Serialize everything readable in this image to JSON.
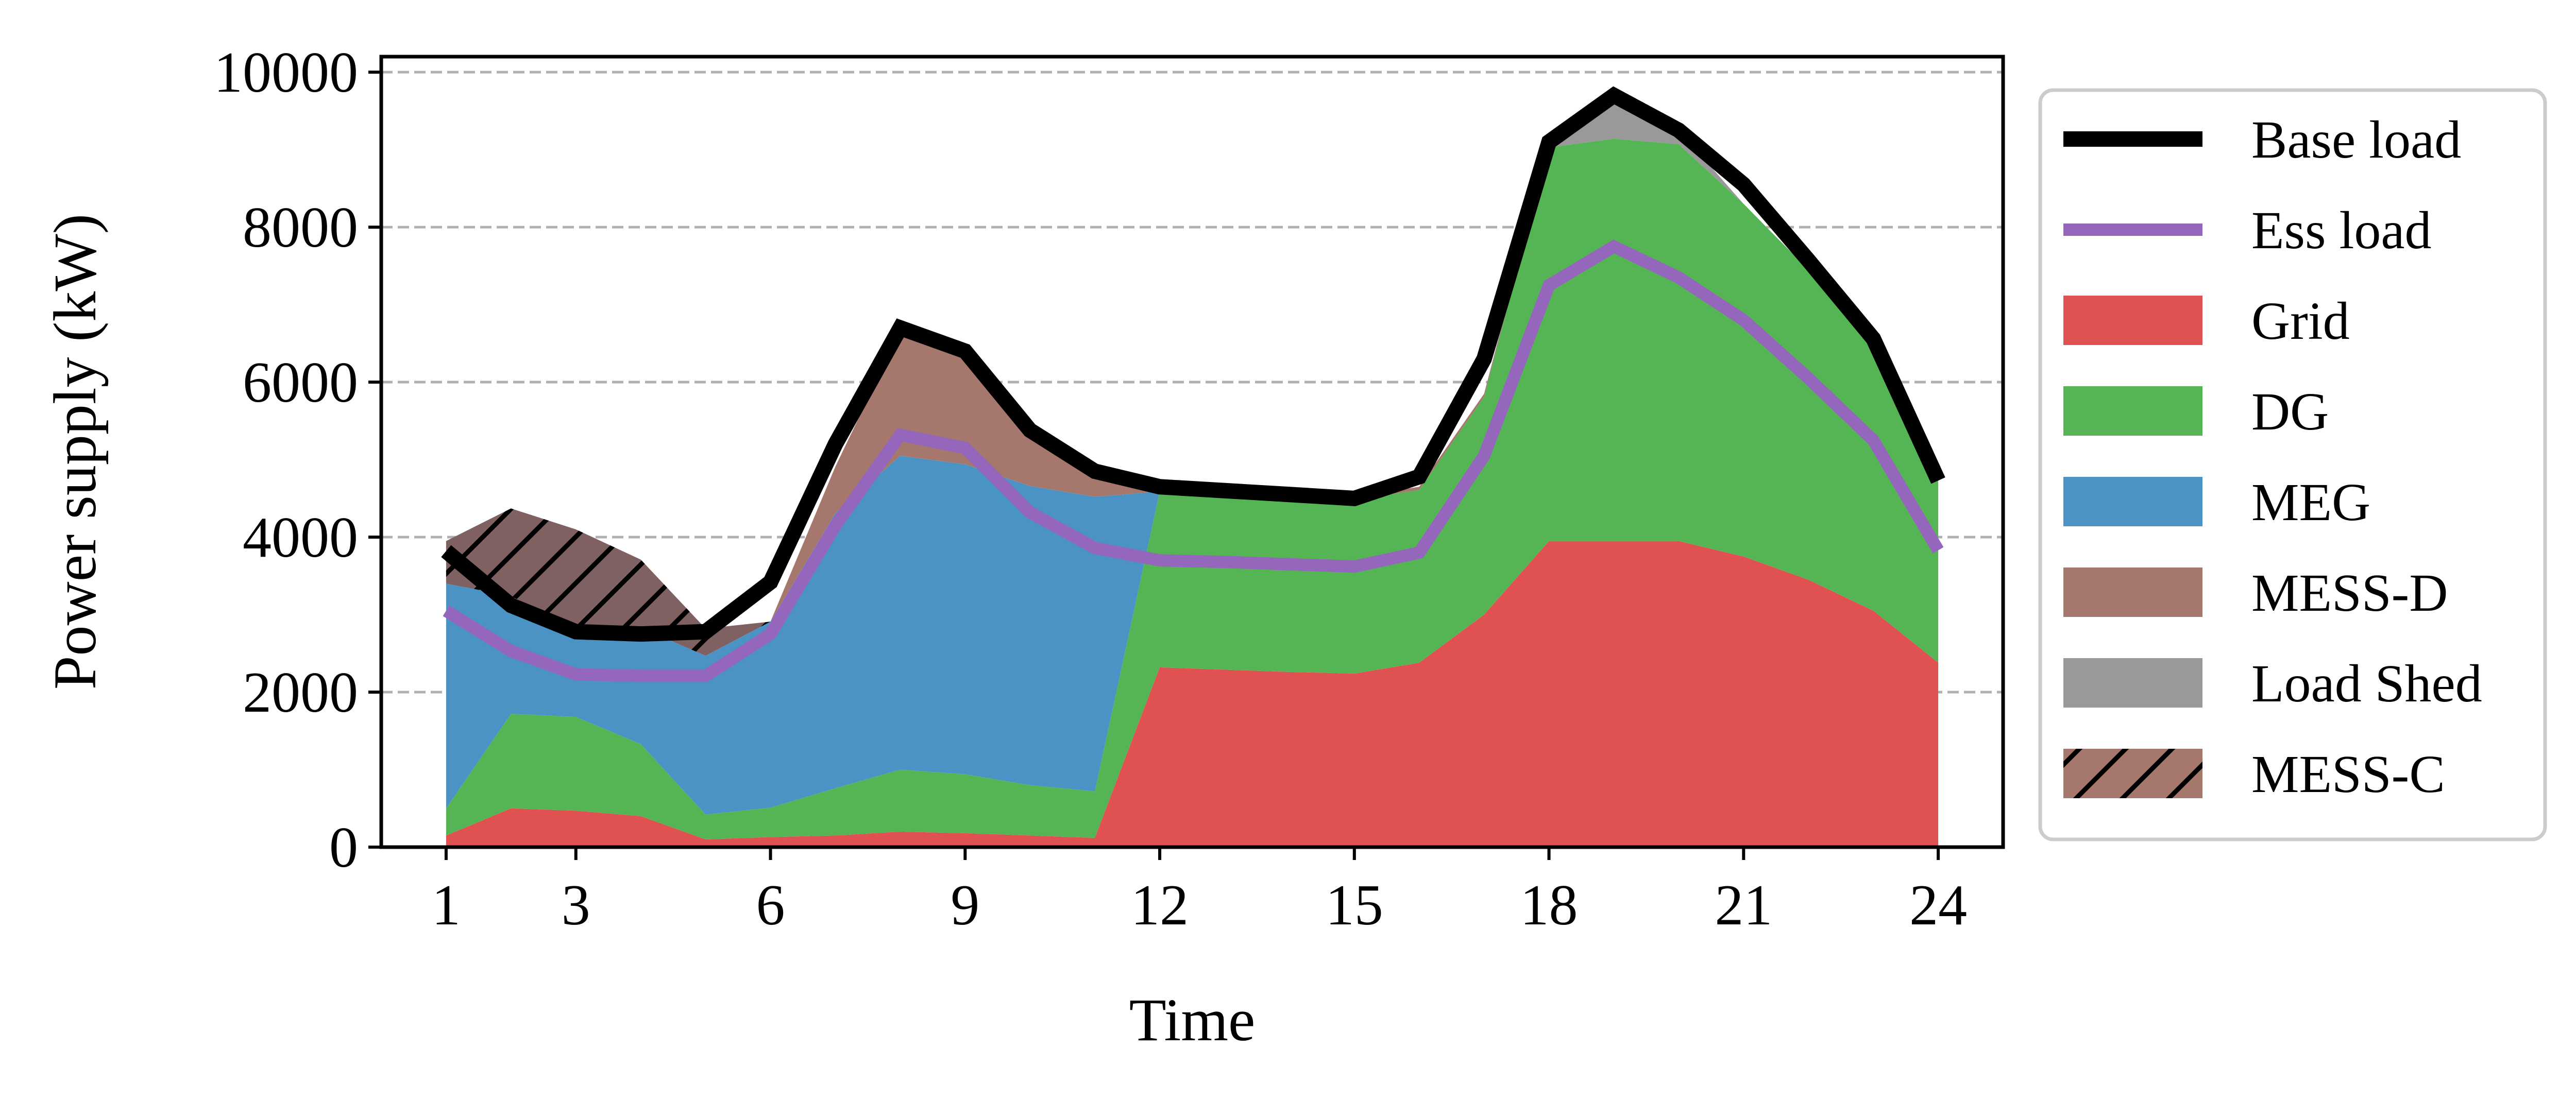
{
  "chart_data": {
    "type": "area",
    "xlabel": "Time",
    "ylabel": "Power supply (kW)",
    "xlim": [
      0,
      25
    ],
    "ylim": [
      0,
      10200
    ],
    "x_ticks": [
      1,
      3,
      6,
      9,
      12,
      15,
      18,
      21,
      24
    ],
    "y_ticks": [
      0,
      2000,
      4000,
      6000,
      8000,
      10000
    ],
    "grid": "y-dashed",
    "legend_position": "right-outside",
    "x": [
      1,
      2,
      3,
      4,
      5,
      6,
      7,
      8,
      9,
      10,
      11,
      12,
      13,
      14,
      15,
      16,
      17,
      18,
      19,
      20,
      21,
      22,
      23,
      24
    ],
    "stacked_series": [
      {
        "name": "Grid",
        "color": "#e05252",
        "values": [
          150,
          500,
          470,
          400,
          100,
          130,
          150,
          200,
          180,
          150,
          120,
          2320,
          2290,
          2260,
          2240,
          2380,
          3000,
          3950,
          3950,
          3950,
          3750,
          3450,
          3050,
          2380
        ]
      },
      {
        "name": "DG",
        "color": "#55b555",
        "values": [
          350,
          1220,
          1210,
          930,
          320,
          380,
          610,
          800,
          760,
          650,
          600,
          2270,
          2250,
          2230,
          2240,
          2230,
          2810,
          5080,
          5190,
          5120,
          4550,
          4000,
          3450,
          2350
        ]
      },
      {
        "name": "MEG",
        "color": "#4b93c5",
        "values": [
          2900,
          1520,
          1100,
          1500,
          2050,
          2400,
          3550,
          4050,
          4000,
          3860,
          3800,
          0,
          0,
          0,
          0,
          0,
          0,
          0,
          0,
          0,
          0,
          0,
          0,
          0
        ]
      },
      {
        "name": "MESS-D",
        "color": "#a5776d",
        "values": [
          0,
          0,
          0,
          0,
          0,
          0,
          600,
          1600,
          1450,
          750,
          320,
          60,
          50,
          40,
          40,
          40,
          40,
          0,
          0,
          0,
          0,
          0,
          0,
          0
        ]
      },
      {
        "name": "Load Shed",
        "color": "#999999",
        "values": [
          0,
          0,
          0,
          0,
          0,
          0,
          0,
          0,
          0,
          0,
          0,
          0,
          0,
          0,
          0,
          0,
          0,
          50,
          570,
          180,
          0,
          0,
          0,
          0
        ]
      },
      {
        "name": "MESS-C",
        "color": "#a5776d",
        "hatch": true,
        "values": [
          550,
          1130,
          1320,
          880,
          350,
          0,
          0,
          0,
          0,
          0,
          0,
          0,
          0,
          0,
          0,
          0,
          0,
          0,
          0,
          0,
          0,
          0,
          0,
          0
        ]
      }
    ],
    "line_series": [
      {
        "name": "Base load",
        "color": "#000000",
        "values": [
          3820,
          3120,
          2780,
          2750,
          2780,
          3420,
          5200,
          6700,
          6400,
          5380,
          4850,
          4650,
          4600,
          4550,
          4500,
          4780,
          6300,
          9100,
          9700,
          9250,
          8550,
          7570,
          6560,
          4730
        ]
      },
      {
        "name": "Ess load",
        "color": "#9467bd",
        "values": [
          3050,
          2530,
          2230,
          2210,
          2210,
          2750,
          4150,
          5320,
          5150,
          4320,
          3860,
          3700,
          3680,
          3650,
          3620,
          3800,
          5050,
          7250,
          7750,
          7350,
          6800,
          6050,
          5250,
          3830
        ]
      }
    ],
    "legend_order": [
      "Base load",
      "Ess load",
      "Grid",
      "DG",
      "MEG",
      "MESS-D",
      "Load Shed",
      "MESS-C"
    ]
  }
}
